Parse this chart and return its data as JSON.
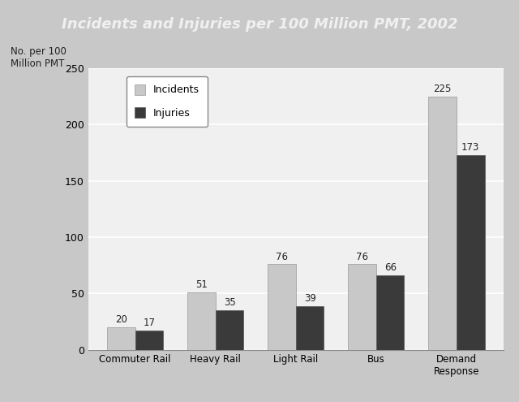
{
  "title": "Incidents and Injuries per 100 Million PMT, 2002",
  "ylabel_line1": "No. per 100",
  "ylabel_line2": "Million PMT",
  "categories": [
    "Commuter Rail",
    "Heavy Rail",
    "Light Rail",
    "Bus",
    "Demand\nResponse"
  ],
  "incidents": [
    20,
    51,
    76,
    76,
    225
  ],
  "injuries": [
    17,
    35,
    39,
    66,
    173
  ],
  "incidents_color": "#c8c8c8",
  "injuries_color": "#3a3a3a",
  "title_bg_color": "#111111",
  "title_text_color": "#f0f0f0",
  "fig_bg_color": "#c8c8c8",
  "plot_bg_color": "#f0f0f0",
  "ylim": [
    0,
    250
  ],
  "yticks": [
    0,
    50,
    100,
    150,
    200,
    250
  ],
  "bar_width": 0.35,
  "legend_labels": [
    "Incidents",
    "Injuries"
  ],
  "value_labels_incidents": [
    20,
    51,
    76,
    76,
    225
  ],
  "value_labels_injuries": [
    17,
    35,
    39,
    66,
    173
  ]
}
